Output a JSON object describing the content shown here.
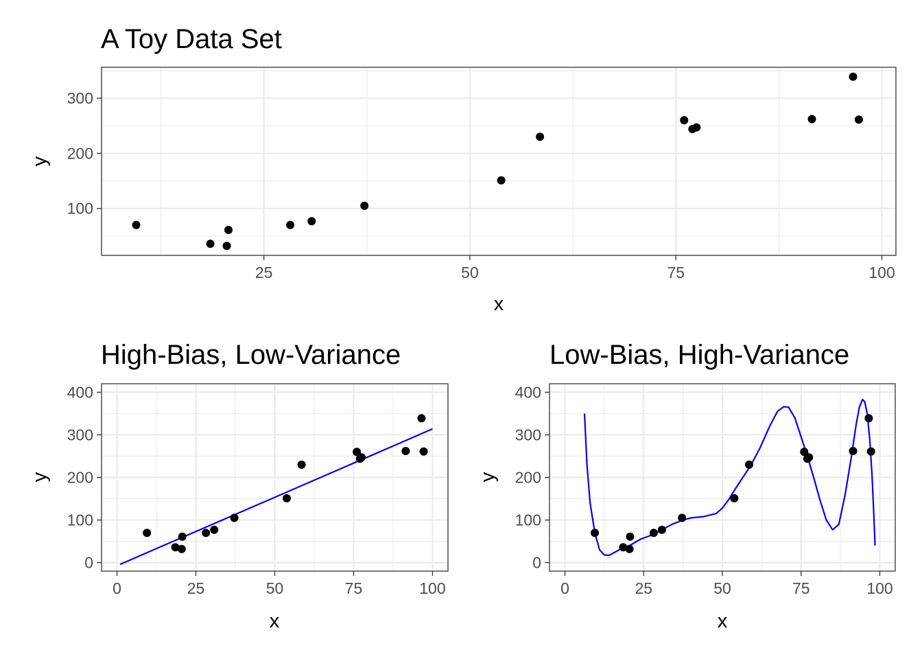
{
  "chart_data": [
    {
      "id": "toy",
      "type": "scatter",
      "title": "A Toy Data Set",
      "xlabel": "x",
      "ylabel": "y",
      "xlim": [
        5.3,
        101.7
      ],
      "ylim": [
        15,
        356
      ],
      "x_ticks": [
        25,
        50,
        75,
        100
      ],
      "y_ticks": [
        100,
        200,
        300
      ],
      "grid": true,
      "points": {
        "x": [
          9.5,
          18.5,
          20.5,
          20.7,
          28.2,
          30.8,
          37.2,
          53.8,
          58.5,
          76.0,
          77.0,
          77.5,
          91.5,
          96.5,
          97.2
        ],
        "y": [
          70,
          36,
          32,
          61,
          70,
          77,
          105,
          151,
          230,
          260,
          244,
          247,
          262,
          339,
          261
        ]
      }
    },
    {
      "id": "high-bias",
      "type": "scatter",
      "title": "High-Bias, Low-Variance",
      "xlabel": "x",
      "ylabel": "y",
      "xlim": [
        -4.9,
        104.9
      ],
      "ylim": [
        -20,
        420
      ],
      "x_ticks": [
        0,
        25,
        50,
        75,
        100
      ],
      "y_ticks": [
        0,
        100,
        200,
        300,
        400
      ],
      "grid": true,
      "points": {
        "x": [
          9.5,
          18.5,
          20.5,
          20.7,
          28.2,
          30.8,
          37.2,
          53.8,
          58.5,
          76.0,
          77.0,
          77.5,
          91.5,
          96.5,
          97.2
        ],
        "y": [
          70,
          36,
          32,
          61,
          70,
          77,
          105,
          151,
          230,
          260,
          244,
          247,
          262,
          339,
          261
        ]
      },
      "fit_line": {
        "color": "#0000ff",
        "x": [
          1,
          100
        ],
        "y": [
          -4,
          314
        ]
      }
    },
    {
      "id": "low-bias",
      "type": "scatter",
      "title": "Low-Bias, High-Variance",
      "xlabel": "x",
      "ylabel": "y",
      "xlim": [
        -4.9,
        104.9
      ],
      "ylim": [
        -20,
        420
      ],
      "x_ticks": [
        0,
        25,
        50,
        75,
        100
      ],
      "y_ticks": [
        0,
        100,
        200,
        300,
        400
      ],
      "grid": true,
      "points": {
        "x": [
          9.5,
          18.5,
          20.5,
          20.7,
          28.2,
          30.8,
          37.2,
          53.8,
          58.5,
          76.0,
          77.0,
          77.5,
          91.5,
          96.5,
          97.2
        ],
        "y": [
          70,
          36,
          32,
          61,
          70,
          77,
          105,
          151,
          230,
          260,
          244,
          247,
          262,
          339,
          261
        ]
      },
      "fit_line": {
        "color": "#0000ff",
        "x": [
          6.2,
          7.0,
          8.0,
          9.5,
          11.0,
          12.5,
          14.0,
          16.0,
          18.5,
          20.5,
          24.0,
          28.0,
          31.0,
          34.0,
          37.5,
          40.0,
          44.0,
          48.0,
          50.0,
          52.0,
          54.0,
          56.5,
          59.0,
          62.0,
          65.0,
          67.5,
          69.5,
          71.0,
          73.0,
          75.0,
          77.0,
          79.0,
          81.0,
          83.0,
          85.0,
          87.0,
          89.0,
          91.0,
          92.5,
          93.5,
          94.5,
          95.2,
          96.0,
          96.8,
          97.5,
          98.0,
          98.5
        ],
        "y": [
          350,
          230,
          140,
          70,
          30,
          18,
          17,
          25,
          35,
          40,
          55,
          66,
          78,
          90,
          100,
          105,
          108,
          115,
          128,
          148,
          172,
          200,
          228,
          270,
          320,
          355,
          366,
          365,
          340,
          295,
          250,
          200,
          147,
          100,
          77,
          90,
          160,
          250,
          325,
          365,
          383,
          378,
          350,
          290,
          210,
          130,
          40
        ]
      }
    }
  ]
}
